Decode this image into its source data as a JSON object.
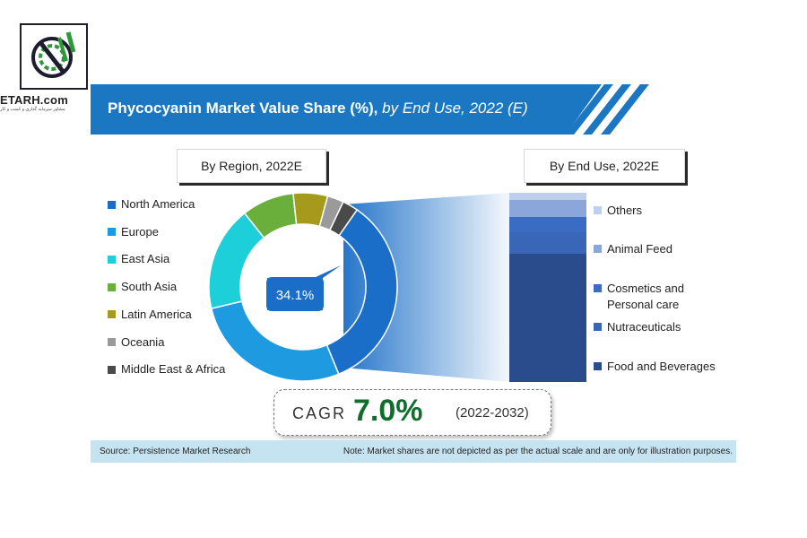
{
  "logo": {
    "name": "ETARH.com",
    "tagline": "مشاور سرمایه گذاری و کسب و کار"
  },
  "header": {
    "title_bold": "Phycocyanin Market Value Share (%),",
    "title_italic": "by End Use, 2022 (E)"
  },
  "sections": {
    "left_label": "By Region, 2022E",
    "right_label": "By End Use, 2022E"
  },
  "donut": {
    "center_label": "34.1%"
  },
  "cagr": {
    "label": "CAGR",
    "value": "7.0%",
    "period": "(2022-2032)"
  },
  "footer": {
    "source": "Source: Persistence Market Research",
    "note": "Note: Market shares are not depicted as per the actual scale and are only for illustration purposes."
  },
  "colors": {
    "banner": "#1c77c3",
    "cagr_value": "#0f6e2c",
    "footer_bg": "#c6e3f2"
  },
  "chart_data": [
    {
      "type": "pie",
      "title": "By Region, 2022E",
      "categories": [
        "North America",
        "Europe",
        "East Asia",
        "South Asia",
        "Latin America",
        "Oceania",
        "Middle East & Africa"
      ],
      "values": [
        34.1,
        27.5,
        18.0,
        9.0,
        5.9,
        2.8,
        2.7
      ],
      "colors": [
        "#1a6ec7",
        "#1e9be0",
        "#1ccfd9",
        "#6aae3c",
        "#a59a1c",
        "#9a9a9a",
        "#4a4a4a"
      ],
      "legend": "left"
    },
    {
      "type": "bar",
      "stacked": true,
      "title": "By End Use, 2022E",
      "categories": [
        "Food and Beverages",
        "Nutraceuticals",
        "Cosmetics and Personal care",
        "Animal Feed",
        "Others"
      ],
      "values": [
        68,
        11,
        8,
        9,
        4
      ],
      "colors": [
        "#2b4c8c",
        "#3966b6",
        "#3b6cc3",
        "#8aa6db",
        "#bcd0ee"
      ],
      "legend": "right"
    }
  ]
}
